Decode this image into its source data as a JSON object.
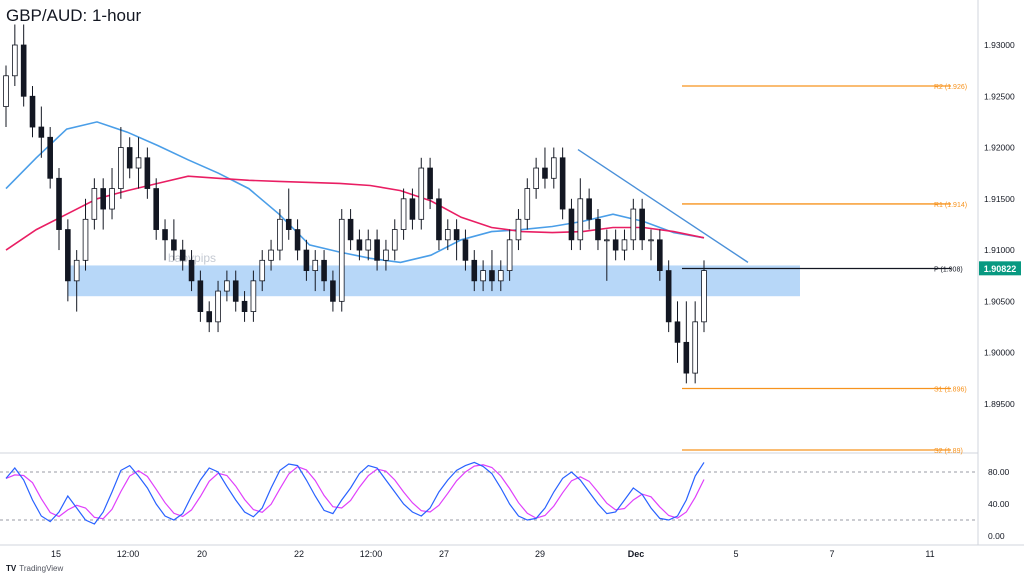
{
  "chart_data": {
    "type": "candlestick",
    "title": "GBP/AUD: 1-hour",
    "watermark": "babypips",
    "price_axis": {
      "ylim": [
        1.8905,
        1.934
      ],
      "ticks": [
        "1.93000",
        "1.92500",
        "1.92000",
        "1.91500",
        "1.91000",
        "1.90500",
        "1.90000",
        "1.89500"
      ],
      "tick_values": [
        1.93,
        1.925,
        1.92,
        1.915,
        1.91,
        1.905,
        1.9,
        1.895
      ],
      "current_price": "1.90822",
      "current_price_value": 1.90822,
      "current_price_color": "#089981"
    },
    "time_axis": {
      "labels": [
        "15",
        "12:00",
        "20",
        "22",
        "12:00",
        "27",
        "29",
        "Dec",
        "5",
        "7",
        "11"
      ],
      "bold": [
        "Dec"
      ]
    },
    "pivot_levels": [
      {
        "label": "R2 (1.926)",
        "value": 1.926,
        "color": "#f7931e"
      },
      {
        "label": "R1 (1.914)",
        "value": 1.9145,
        "color": "#f7931e"
      },
      {
        "label": "P (1.908)",
        "value": 1.9082,
        "color": "#131722"
      },
      {
        "label": "S1 (1.896)",
        "value": 1.8965,
        "color": "#f7931e"
      },
      {
        "label": "S2 (1.89)",
        "value": 1.8905,
        "color": "#f7931e"
      }
    ],
    "support_zone": {
      "low": 1.9055,
      "high": 1.9085,
      "color": "#90c2f5"
    },
    "trendline": {
      "from": {
        "t": "Nov 29 12:00",
        "y": 1.9198
      },
      "to": {
        "t": "Dec 5",
        "y": 1.9088
      },
      "color": "#4a90d9"
    },
    "moving_averages": [
      {
        "color": "#4a9ee8",
        "values": [
          1.916,
          1.919,
          1.9218,
          1.9225,
          1.9215,
          1.9202,
          1.9188,
          1.9175,
          1.916,
          1.9135,
          1.9105,
          1.9098,
          1.9092,
          1.9088,
          1.9095,
          1.911,
          1.9118,
          1.912,
          1.9123,
          1.9128,
          1.9135,
          1.9128,
          1.9117,
          1.9112
        ]
      },
      {
        "color": "#e91e63",
        "values": [
          1.91,
          1.912,
          1.9135,
          1.915,
          1.9158,
          1.9165,
          1.9172,
          1.917,
          1.9168,
          1.9167,
          1.9166,
          1.9165,
          1.9163,
          1.9158,
          1.9148,
          1.9132,
          1.9122,
          1.9118,
          1.9117,
          1.9118,
          1.9122,
          1.9122,
          1.9118,
          1.9112
        ]
      }
    ],
    "ohlc": [
      [
        1.924,
        1.928,
        1.922,
        1.927
      ],
      [
        1.927,
        1.932,
        1.926,
        1.93
      ],
      [
        1.93,
        1.932,
        1.924,
        1.925
      ],
      [
        1.925,
        1.926,
        1.921,
        1.922
      ],
      [
        1.922,
        1.924,
        1.919,
        1.921
      ],
      [
        1.921,
        1.922,
        1.916,
        1.917
      ],
      [
        1.917,
        1.918,
        1.91,
        1.912
      ],
      [
        1.912,
        1.913,
        1.905,
        1.907
      ],
      [
        1.907,
        1.91,
        1.904,
        1.909
      ],
      [
        1.909,
        1.915,
        1.908,
        1.913
      ],
      [
        1.913,
        1.917,
        1.912,
        1.916
      ],
      [
        1.916,
        1.917,
        1.912,
        1.914
      ],
      [
        1.914,
        1.918,
        1.913,
        1.916
      ],
      [
        1.916,
        1.922,
        1.915,
        1.92
      ],
      [
        1.92,
        1.921,
        1.917,
        1.918
      ],
      [
        1.918,
        1.921,
        1.916,
        1.919
      ],
      [
        1.919,
        1.92,
        1.915,
        1.916
      ],
      [
        1.916,
        1.917,
        1.911,
        1.912
      ],
      [
        1.912,
        1.913,
        1.909,
        1.911
      ],
      [
        1.911,
        1.913,
        1.909,
        1.91
      ],
      [
        1.91,
        1.911,
        1.908,
        1.909
      ],
      [
        1.909,
        1.91,
        1.906,
        1.907
      ],
      [
        1.907,
        1.908,
        1.903,
        1.904
      ],
      [
        1.904,
        1.905,
        1.902,
        1.903
      ],
      [
        1.903,
        1.907,
        1.902,
        1.906
      ],
      [
        1.906,
        1.908,
        1.905,
        1.907
      ],
      [
        1.907,
        1.908,
        1.904,
        1.905
      ],
      [
        1.905,
        1.906,
        1.903,
        1.904
      ],
      [
        1.904,
        1.908,
        1.903,
        1.907
      ],
      [
        1.907,
        1.91,
        1.906,
        1.909
      ],
      [
        1.909,
        1.911,
        1.908,
        1.91
      ],
      [
        1.91,
        1.914,
        1.909,
        1.913
      ],
      [
        1.913,
        1.916,
        1.911,
        1.912
      ],
      [
        1.912,
        1.913,
        1.909,
        1.91
      ],
      [
        1.91,
        1.911,
        1.907,
        1.908
      ],
      [
        1.908,
        1.91,
        1.906,
        1.909
      ],
      [
        1.909,
        1.91,
        1.906,
        1.907
      ],
      [
        1.907,
        1.908,
        1.904,
        1.905
      ],
      [
        1.905,
        1.914,
        1.904,
        1.913
      ],
      [
        1.913,
        1.914,
        1.91,
        1.911
      ],
      [
        1.911,
        1.912,
        1.909,
        1.91
      ],
      [
        1.91,
        1.912,
        1.909,
        1.911
      ],
      [
        1.911,
        1.912,
        1.908,
        1.909
      ],
      [
        1.909,
        1.911,
        1.908,
        1.91
      ],
      [
        1.91,
        1.913,
        1.909,
        1.912
      ],
      [
        1.912,
        1.916,
        1.911,
        1.915
      ],
      [
        1.915,
        1.916,
        1.912,
        1.913
      ],
      [
        1.913,
        1.919,
        1.912,
        1.918
      ],
      [
        1.918,
        1.919,
        1.914,
        1.915
      ],
      [
        1.915,
        1.916,
        1.91,
        1.911
      ],
      [
        1.911,
        1.913,
        1.91,
        1.912
      ],
      [
        1.912,
        1.913,
        1.909,
        1.911
      ],
      [
        1.911,
        1.912,
        1.908,
        1.909
      ],
      [
        1.909,
        1.91,
        1.906,
        1.907
      ],
      [
        1.907,
        1.909,
        1.906,
        1.908
      ],
      [
        1.908,
        1.91,
        1.906,
        1.907
      ],
      [
        1.907,
        1.909,
        1.906,
        1.908
      ],
      [
        1.908,
        1.912,
        1.907,
        1.911
      ],
      [
        1.911,
        1.914,
        1.91,
        1.913
      ],
      [
        1.913,
        1.917,
        1.912,
        1.916
      ],
      [
        1.916,
        1.919,
        1.915,
        1.918
      ],
      [
        1.918,
        1.92,
        1.916,
        1.917
      ],
      [
        1.917,
        1.92,
        1.916,
        1.919
      ],
      [
        1.919,
        1.92,
        1.913,
        1.914
      ],
      [
        1.914,
        1.915,
        1.91,
        1.911
      ],
      [
        1.911,
        1.917,
        1.91,
        1.915
      ],
      [
        1.915,
        1.916,
        1.912,
        1.913
      ],
      [
        1.913,
        1.914,
        1.91,
        1.911
      ],
      [
        1.911,
        1.912,
        1.907,
        1.911
      ],
      [
        1.911,
        1.912,
        1.909,
        1.91
      ],
      [
        1.91,
        1.912,
        1.909,
        1.911
      ],
      [
        1.911,
        1.915,
        1.91,
        1.914
      ],
      [
        1.914,
        1.915,
        1.91,
        1.911
      ],
      [
        1.911,
        1.912,
        1.909,
        1.911
      ],
      [
        1.911,
        1.912,
        1.907,
        1.908
      ],
      [
        1.908,
        1.909,
        1.902,
        1.903
      ],
      [
        1.903,
        1.905,
        1.899,
        1.901
      ],
      [
        1.901,
        1.905,
        1.897,
        1.898
      ],
      [
        1.898,
        1.905,
        1.897,
        1.903
      ],
      [
        1.903,
        1.909,
        1.902,
        1.908
      ]
    ],
    "stochastic": {
      "ylim": [
        0,
        100
      ],
      "ticks": [
        "80.00",
        "40.00",
        "0.00"
      ],
      "tick_values": [
        80,
        40,
        0
      ],
      "levels": [
        80,
        20
      ],
      "k_color": "#2962ff",
      "d_color": "#e040fb",
      "k": [
        72,
        85,
        70,
        45,
        25,
        18,
        30,
        50,
        35,
        20,
        15,
        30,
        55,
        82,
        88,
        75,
        60,
        40,
        25,
        20,
        28,
        50,
        70,
        85,
        80,
        62,
        45,
        30,
        24,
        35,
        60,
        82,
        90,
        88,
        70,
        50,
        32,
        28,
        45,
        60,
        78,
        88,
        85,
        70,
        55,
        40,
        30,
        25,
        35,
        55,
        70,
        82,
        88,
        92,
        87,
        78,
        60,
        40,
        25,
        20,
        22,
        35,
        55,
        72,
        80,
        70,
        55,
        40,
        28,
        30,
        45,
        60,
        52,
        35,
        22,
        20,
        25,
        45,
        75,
        92
      ]
    }
  },
  "branding": {
    "logo": "TV",
    "name": "TradingView"
  }
}
